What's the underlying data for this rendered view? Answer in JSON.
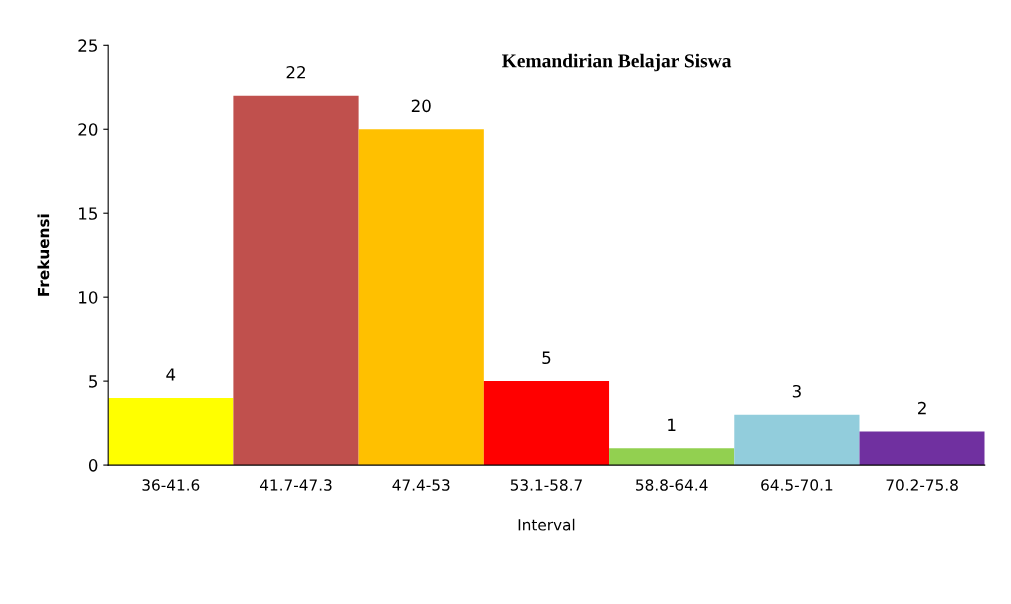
{
  "chart_data": {
    "type": "bar",
    "title": "Kemandirian Belajar Siswa",
    "xlabel": "Interval",
    "ylabel": "Frekuensi",
    "categories": [
      "36-41.6",
      "41.7-47.3",
      "47.4-53",
      "53.1-58.7",
      "58.8-64.4",
      "64.5-70.1",
      "70.2-75.8"
    ],
    "values": [
      4,
      22,
      20,
      5,
      1,
      3,
      2
    ],
    "colors": [
      "#ffff00",
      "#c0504d",
      "#ffc000",
      "#ff0000",
      "#92d050",
      "#92cddc",
      "#7030a0"
    ],
    "ylim": [
      0,
      25
    ],
    "yticks": [
      0,
      5,
      10,
      15,
      20,
      25
    ],
    "grid": false,
    "legend": false,
    "data_labels": true
  }
}
